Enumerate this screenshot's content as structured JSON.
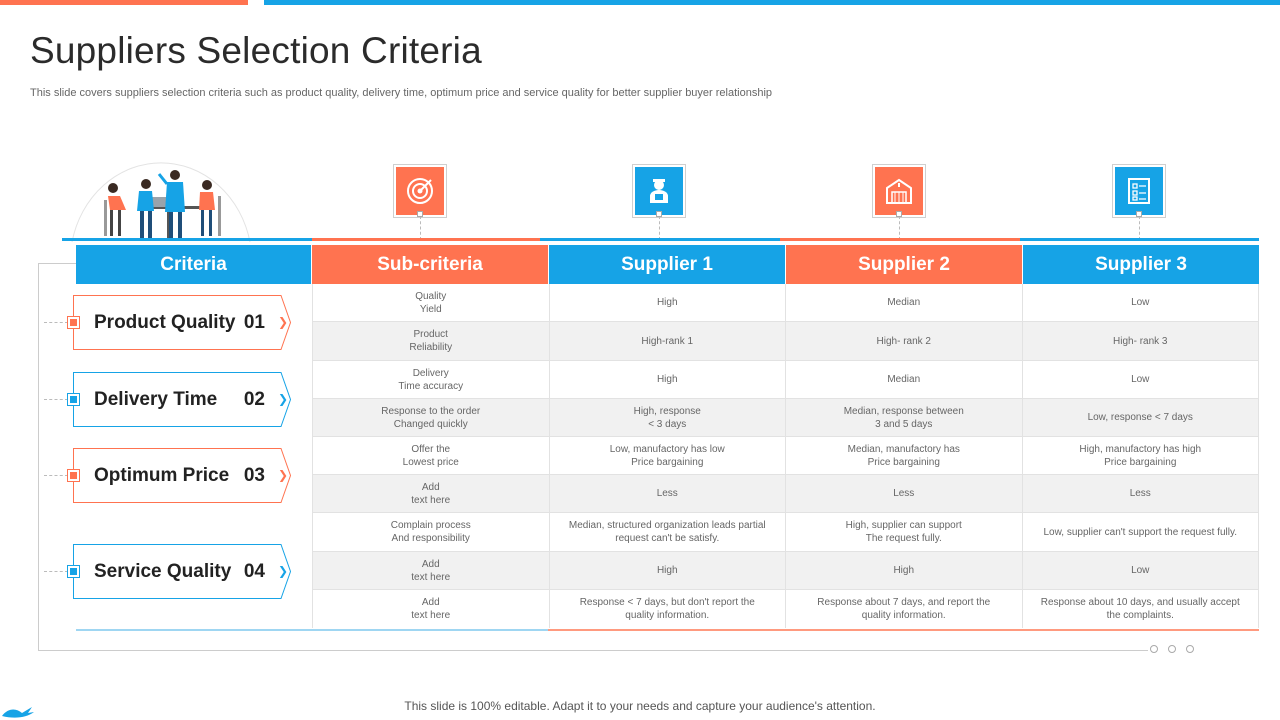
{
  "title": "Suppliers Selection Criteria",
  "subtitle": "This slide covers suppliers selection criteria such as product quality, delivery time, optimum price and service quality for better supplier buyer relationship",
  "colors": {
    "orange": "#FF7350",
    "blue": "#16A3E6"
  },
  "column_icons": [
    "target-icon",
    "delivery-worker-icon",
    "warehouse-icon",
    "checklist-icon"
  ],
  "headers": [
    "Criteria",
    "Sub-criteria",
    "Supplier 1",
    "Supplier 2",
    "Supplier 3"
  ],
  "criteria": [
    {
      "label": "Product Quality",
      "number": "01",
      "accent": "orange"
    },
    {
      "label": "Delivery Time",
      "number": "02",
      "accent": "blue"
    },
    {
      "label": "Optimum Price",
      "number": "03",
      "accent": "orange"
    },
    {
      "label": "Service Quality",
      "number": "04",
      "accent": "blue"
    }
  ],
  "rows": [
    [
      "Quality\nYield",
      "High",
      "Median",
      "Low"
    ],
    [
      "Product\nReliability",
      "High-rank 1",
      "High- rank 2",
      "High- rank 3"
    ],
    [
      "Delivery\nTime accuracy",
      "High",
      "Median",
      "Low"
    ],
    [
      "Response to the order\nChanged quickly",
      "High, response\n< 3 days",
      "Median, response between\n3 and 5 days",
      "Low, response < 7 days"
    ],
    [
      "Offer the\nLowest price",
      "Low, manufactory has low\nPrice bargaining",
      "Median, manufactory has\nPrice bargaining",
      "High, manufactory has high\nPrice bargaining"
    ],
    [
      "Add\ntext here",
      "Less",
      "Less",
      "Less"
    ],
    [
      "Complain process\nAnd responsibility",
      "Median, structured organization leads partial\nrequest can't be satisfy.",
      "High, supplier can support\nThe request fully.",
      "Low, supplier can't support the request fully."
    ],
    [
      "Add\ntext here",
      "High",
      "High",
      "Low"
    ],
    [
      "Add\ntext here",
      "Response < 7 days, but don't report the\nquality information.",
      "Response about 7 days, and report the\nquality information.",
      "Response about 10 days, and usually accept\nthe complaints."
    ]
  ],
  "footer": "This slide is 100% editable. Adapt it to your needs and capture your audience's attention."
}
